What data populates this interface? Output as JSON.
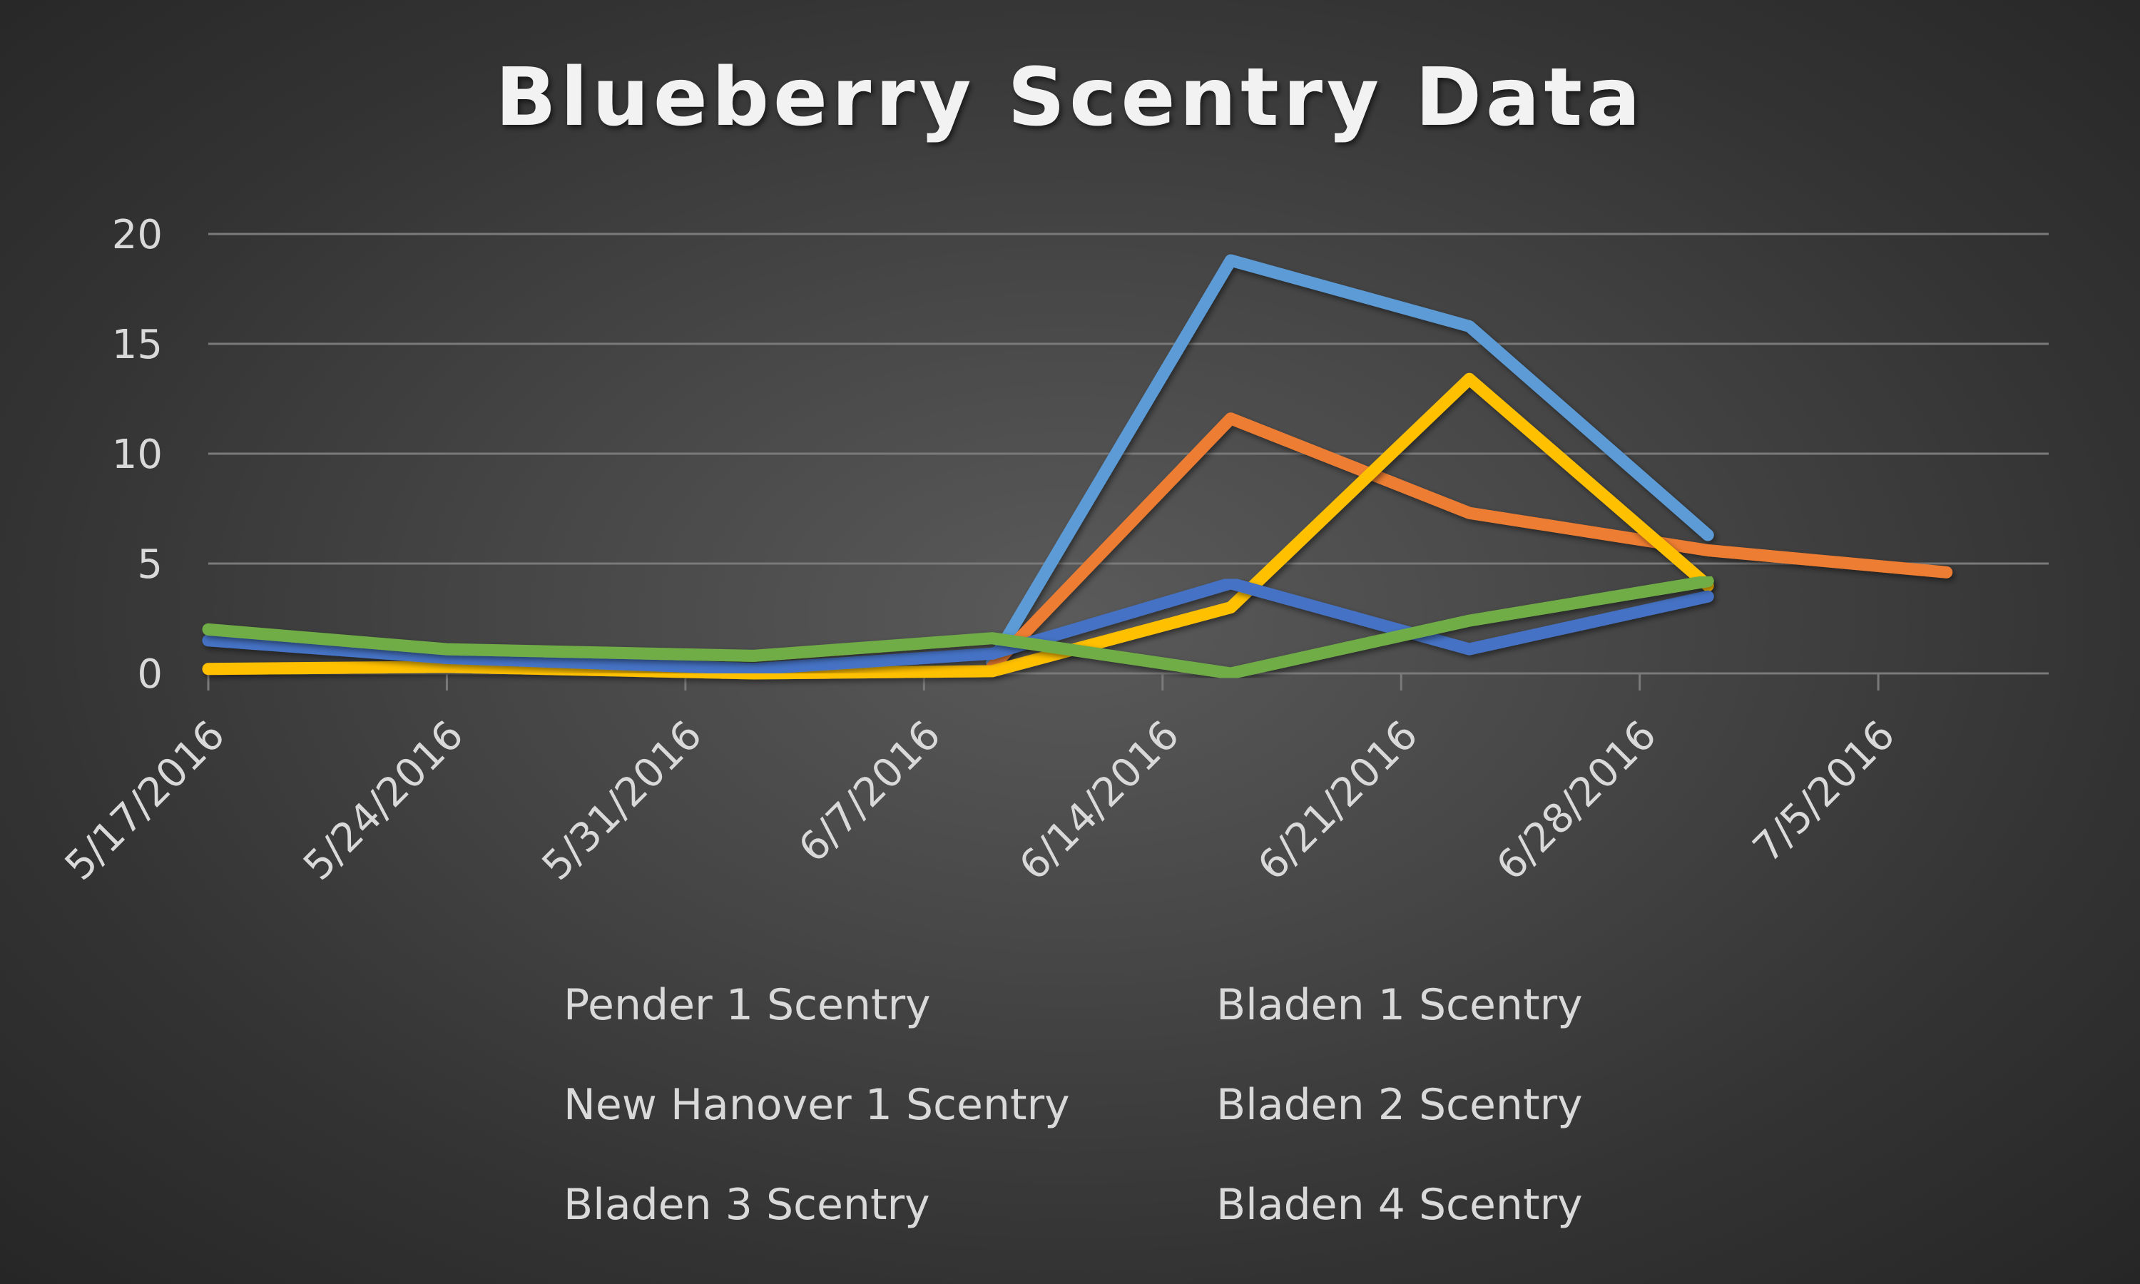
{
  "chart_data": {
    "type": "line",
    "title": "Blueberry Scentry Data",
    "xlabel": "",
    "ylabel": "",
    "x_type": "date",
    "xlim": [
      "5/17/2016",
      "7/10/2016"
    ],
    "x_ticks": [
      "5/17/2016",
      "5/24/2016",
      "5/31/2016",
      "6/7/2016",
      "6/14/2016",
      "6/21/2016",
      "6/28/2016",
      "7/5/2016"
    ],
    "ylim": [
      0,
      20
    ],
    "y_ticks": [
      0,
      5,
      10,
      15,
      20
    ],
    "grid": "horizontal",
    "legend_position": "bottom",
    "series": [
      {
        "name": "Pender 1 Scentry",
        "color": "#5b9bd5",
        "points": [
          [
            "6/9/2016",
            0.5
          ],
          [
            "6/16/2016",
            18.8
          ],
          [
            "6/23/2016",
            15.8
          ],
          [
            "6/30/2016",
            6.3
          ]
        ]
      },
      {
        "name": "Bladen 1 Scentry",
        "color": "#ed7d31",
        "points": [
          [
            "6/9/2016",
            0.3
          ],
          [
            "6/16/2016",
            11.6
          ],
          [
            "6/23/2016",
            7.3
          ],
          [
            "6/30/2016",
            5.6
          ],
          [
            "7/7/2016",
            4.6
          ]
        ]
      },
      {
        "name": "New Hanover 1 Scentry",
        "color": "#a5a5a5",
        "points": []
      },
      {
        "name": "Bladen 2 Scentry",
        "color": "#ffc000",
        "points": [
          [
            "5/17/2016",
            0.2
          ],
          [
            "5/24/2016",
            0.3
          ],
          [
            "6/2/2016",
            0.0
          ],
          [
            "6/9/2016",
            0.1
          ],
          [
            "6/16/2016",
            3.0
          ],
          [
            "6/23/2016",
            13.4
          ],
          [
            "6/30/2016",
            4.0
          ]
        ]
      },
      {
        "name": "Bladen 3 Scentry",
        "color": "#4472c4",
        "points": [
          [
            "5/17/2016",
            1.5
          ],
          [
            "5/24/2016",
            0.7
          ],
          [
            "6/2/2016",
            0.2
          ],
          [
            "6/9/2016",
            0.9
          ],
          [
            "6/16/2016",
            4.1
          ],
          [
            "6/23/2016",
            1.1
          ],
          [
            "6/30/2016",
            3.5
          ]
        ]
      },
      {
        "name": "Bladen 4 Scentry",
        "color": "#70ad47",
        "points": [
          [
            "5/17/2016",
            2.0
          ],
          [
            "5/24/2016",
            1.1
          ],
          [
            "6/2/2016",
            0.8
          ],
          [
            "6/9/2016",
            1.6
          ],
          [
            "6/16/2016",
            0.0
          ],
          [
            "6/23/2016",
            2.4
          ],
          [
            "6/30/2016",
            4.2
          ]
        ]
      }
    ]
  },
  "colors": {
    "gridline": "#7a7a7a",
    "axis_text": "#d9d9d9",
    "title_text": "#f2f2f2"
  }
}
